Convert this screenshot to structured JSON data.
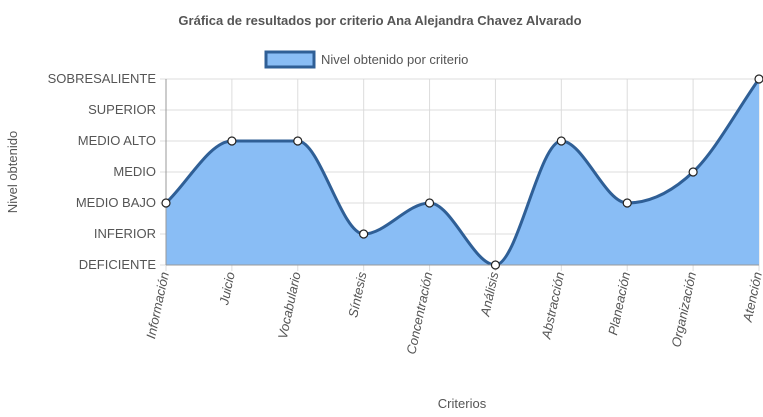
{
  "chart_data": {
    "type": "area",
    "title": "Gráfica de resultados por criterio Ana Alejandra Chavez Alvarado",
    "xlabel": "Criterios",
    "ylabel": "Nivel obtenido",
    "categories": [
      "Información",
      "Juicio",
      "Vocabulario",
      "Síntesis",
      "Concentración",
      "Análisis",
      "Abstracción",
      "Planeación",
      "Organización",
      "Atención"
    ],
    "y_levels": [
      "DEFICIENTE",
      "INFERIOR",
      "MEDIO BAJO",
      "MEDIO",
      "MEDIO ALTO",
      "SUPERIOR",
      "SOBRESALIENTE"
    ],
    "ylim": [
      0,
      6
    ],
    "series": [
      {
        "name": "Nivel obtenido por criterio",
        "values": [
          2,
          4,
          4,
          1,
          2,
          0,
          4,
          2,
          3,
          6
        ]
      }
    ],
    "legend_position": "top",
    "grid": true,
    "colors": {
      "fill": "#89bdf5",
      "line": "#2f5f96",
      "point_fill": "#ffffff",
      "point_stroke": "#222222",
      "grid": "#dcdcdc",
      "axis": "#999999"
    }
  }
}
